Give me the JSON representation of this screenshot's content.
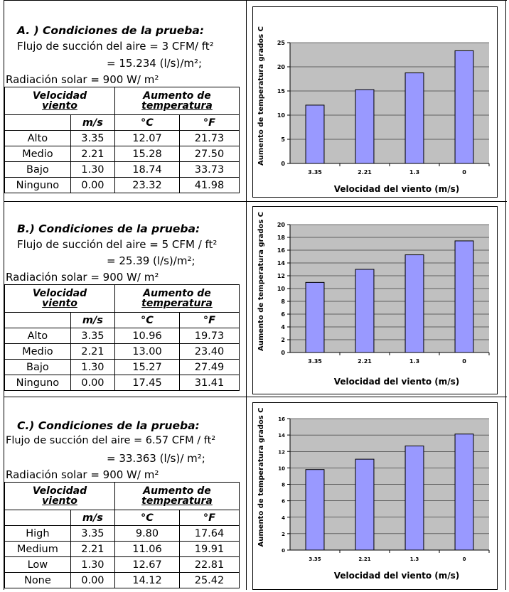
{
  "sections": [
    {
      "title": "A. ) Condiciones de la prueba:",
      "line1": "Flujo de succión del aire = 3 CFM/ ft²",
      "line2": "= 15.234 (l/s)/m²;",
      "line3": "Radiación solar = 900 W/ m²",
      "head_vel_1": "Velocidad",
      "head_vel_2": "viento",
      "head_aum_1": "Aumento de",
      "head_aum_2": "temperatura",
      "unit_ms": "m/s",
      "unit_c": "°C",
      "unit_f": "°F",
      "rows": [
        {
          "label": "Alto",
          "ms": "3.35",
          "c": "12.07",
          "f": "21.73"
        },
        {
          "label": "Medio",
          "ms": "2.21",
          "c": "15.28",
          "f": "27.50"
        },
        {
          "label": "Bajo",
          "ms": "1.30",
          "c": "18.74",
          "f": "33.73"
        },
        {
          "label": "Ninguno",
          "ms": "0.00",
          "c": "23.32",
          "f": "41.98"
        }
      ]
    },
    {
      "title": "B.) Condiciones de la prueba:",
      "line1": "Flujo de succión del aire = 5 CFM / ft²",
      "line2": "= 25.39 (l/s)/m²;",
      "line3": "Radiación solar  = 900 W/ m²",
      "head_vel_1": "Velocidad",
      "head_vel_2": "viento",
      "head_aum_1": "Aumento de",
      "head_aum_2": "temperatura",
      "unit_ms": "m/s",
      "unit_c": "°C",
      "unit_f": "°F",
      "rows": [
        {
          "label": "Alto",
          "ms": "3.35",
          "c": "10.96",
          "f": "19.73"
        },
        {
          "label": "Medio",
          "ms": "2.21",
          "c": "13.00",
          "f": "23.40"
        },
        {
          "label": "Bajo",
          "ms": "1.30",
          "c": "15.27",
          "f": "27.49"
        },
        {
          "label": "Ninguno",
          "ms": "0.00",
          "c": "17.45",
          "f": "31.41"
        }
      ]
    },
    {
      "title": "C.) Condiciones de la prueba:",
      "line1": "Flujo de succión del aire = 6.57 CFM / ft²",
      "line2": "= 33.363 (l/s)/ m²;",
      "line3": "Radiación solar  = 900 W/ m²",
      "head_vel_1": "Velocidad",
      "head_vel_2": "viento",
      "head_aum_1": "Aumento de",
      "head_aum_2": "temperatura",
      "unit_ms": "m/s",
      "unit_c": "°C",
      "unit_f": "°F",
      "rows": [
        {
          "label": "High",
          "ms": "3.35",
          "c": "9.80",
          "f": "17.64"
        },
        {
          "label": "Medium",
          "ms": "2.21",
          "c": "11.06",
          "f": "19.91"
        },
        {
          "label": "Low",
          "ms": "1.30",
          "c": "12.67",
          "f": "22.81"
        },
        {
          "label": "None",
          "ms": "0.00",
          "c": "14.12",
          "f": "25.42"
        }
      ]
    }
  ],
  "chart_data": [
    {
      "type": "bar",
      "categories": [
        "3.35",
        "2.21",
        "1.3",
        "0"
      ],
      "values": [
        12.07,
        15.28,
        18.74,
        23.32
      ],
      "xlabel": "Velocidad del viento (m/s)",
      "ylabel": "Aumento de temperatura grados C",
      "ylim": [
        0,
        25
      ],
      "yticks": [
        0,
        5,
        10,
        15,
        20,
        25
      ],
      "bar_color": "#9999ff",
      "plot_bg": "#c0c0c0",
      "grid": true
    },
    {
      "type": "bar",
      "categories": [
        "3.35",
        "2.21",
        "1.3",
        "0"
      ],
      "values": [
        10.96,
        13.0,
        15.27,
        17.45
      ],
      "xlabel": "Velocidad del viento (m/s)",
      "ylabel": "Aumento de temperatura grados C",
      "ylim": [
        0,
        20
      ],
      "yticks": [
        0,
        2,
        4,
        6,
        8,
        10,
        12,
        14,
        16,
        18,
        20
      ],
      "bar_color": "#9999ff",
      "plot_bg": "#c0c0c0",
      "grid": true
    },
    {
      "type": "bar",
      "categories": [
        "3.35",
        "2.21",
        "1.3",
        "0"
      ],
      "values": [
        9.8,
        11.06,
        12.67,
        14.12
      ],
      "xlabel": "Velocidad del viento (m/s)",
      "ylabel": "Aumento de temperatura grados C",
      "ylim": [
        0,
        16
      ],
      "yticks": [
        0,
        2,
        4,
        6,
        8,
        10,
        12,
        14,
        16
      ],
      "bar_color": "#9999ff",
      "plot_bg": "#c0c0c0",
      "grid": true
    }
  ]
}
